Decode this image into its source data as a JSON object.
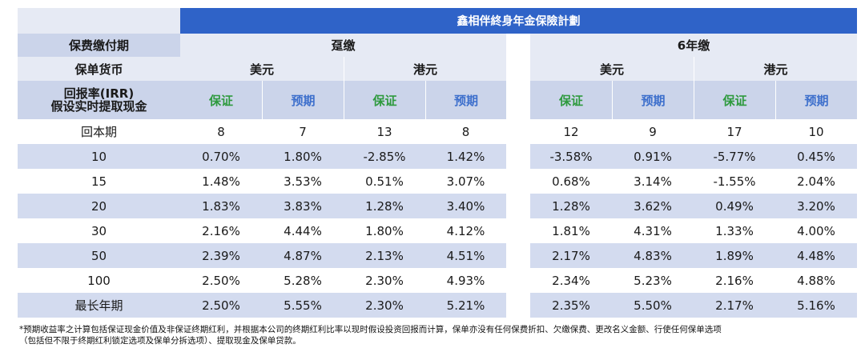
{
  "title": "鑫相伴終身年金保險計劃",
  "header": {
    "payment_period_label": "保费缴付期",
    "currency_label": "保单货币",
    "irr_label_1": "回报率(IRR)",
    "irr_label_2": "假设实时提取现金",
    "plan_a": "趸缴",
    "plan_b": "6年缴",
    "usd": "美元",
    "hkd": "港元",
    "guaranteed": "保证",
    "projected": "预期"
  },
  "rows": [
    {
      "label": "回本期",
      "values": [
        "8",
        "7",
        "13",
        "8",
        "12",
        "9",
        "17",
        "10"
      ]
    },
    {
      "label": "10",
      "values": [
        "0.70%",
        "1.80%",
        "-2.85%",
        "1.42%",
        "-3.58%",
        "0.91%",
        "-5.77%",
        "0.45%"
      ]
    },
    {
      "label": "15",
      "values": [
        "1.48%",
        "3.53%",
        "0.51%",
        "3.07%",
        "0.68%",
        "3.14%",
        "-1.55%",
        "2.04%"
      ]
    },
    {
      "label": "20",
      "values": [
        "1.83%",
        "3.83%",
        "1.28%",
        "3.40%",
        "1.28%",
        "3.62%",
        "0.49%",
        "3.20%"
      ]
    },
    {
      "label": "30",
      "values": [
        "2.16%",
        "4.44%",
        "1.80%",
        "4.12%",
        "1.81%",
        "4.31%",
        "1.33%",
        "4.00%"
      ]
    },
    {
      "label": "50",
      "values": [
        "2.39%",
        "4.87%",
        "2.13%",
        "4.51%",
        "2.17%",
        "4.83%",
        "1.89%",
        "4.48%"
      ]
    },
    {
      "label": "100",
      "values": [
        "2.50%",
        "5.28%",
        "2.30%",
        "4.93%",
        "2.34%",
        "5.23%",
        "2.16%",
        "4.88%"
      ]
    },
    {
      "label": "最长年期",
      "values": [
        "2.50%",
        "5.55%",
        "2.30%",
        "5.21%",
        "2.35%",
        "5.50%",
        "2.17%",
        "5.16%"
      ]
    }
  ],
  "footnote": {
    "line1": "*预期收益率之计算包括保证现金价值及非保证终期红利，并根据本公司的终期红利比率以现时假设投资回报而计算，保单亦没有任何保费折扣、欠缴保费、更改名义金额、行使任何保单选项",
    "line2": "（包括但不限于终期红利锁定选项及保单分拆选项）、提取现金及保单贷款。"
  }
}
